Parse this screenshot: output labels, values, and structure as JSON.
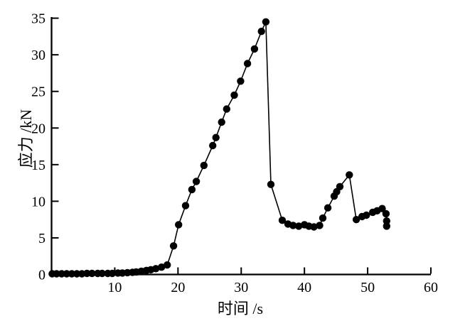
{
  "chart_data": {
    "type": "line",
    "title": "",
    "xlabel": "时间 /s",
    "ylabel": "应力 /kN",
    "xlim": [
      0,
      60
    ],
    "ylim": [
      0,
      35
    ],
    "xticks": [
      10,
      20,
      30,
      40,
      50,
      60
    ],
    "yticks": [
      0,
      5,
      10,
      15,
      20,
      25,
      30,
      35
    ],
    "grid": false,
    "legend": "none",
    "marker": "filled-circle",
    "colors": {
      "line": "#000000",
      "marker": "#000000",
      "axis": "#000000",
      "text": "#000000",
      "background": "#ffffff"
    },
    "series": [
      {
        "name": "stress",
        "points": [
          [
            0.1,
            0.1
          ],
          [
            0.8,
            0.1
          ],
          [
            1.6,
            0.1
          ],
          [
            2.4,
            0.1
          ],
          [
            3.2,
            0.1
          ],
          [
            4.0,
            0.1
          ],
          [
            4.8,
            0.1
          ],
          [
            5.6,
            0.15
          ],
          [
            6.4,
            0.15
          ],
          [
            7.3,
            0.15
          ],
          [
            8.0,
            0.15
          ],
          [
            8.9,
            0.15
          ],
          [
            9.6,
            0.15
          ],
          [
            10.5,
            0.2
          ],
          [
            11.2,
            0.2
          ],
          [
            12.0,
            0.25
          ],
          [
            12.8,
            0.3
          ],
          [
            13.4,
            0.35
          ],
          [
            14.2,
            0.45
          ],
          [
            15.0,
            0.55
          ],
          [
            15.7,
            0.65
          ],
          [
            16.5,
            0.8
          ],
          [
            17.4,
            1.0
          ],
          [
            18.3,
            1.3
          ],
          [
            19.3,
            3.9
          ],
          [
            20.1,
            6.8
          ],
          [
            21.2,
            9.4
          ],
          [
            22.2,
            11.6
          ],
          [
            22.9,
            12.7
          ],
          [
            24.1,
            14.9
          ],
          [
            25.5,
            17.6
          ],
          [
            26.0,
            18.7
          ],
          [
            26.9,
            20.8
          ],
          [
            27.7,
            22.6
          ],
          [
            28.9,
            24.5
          ],
          [
            29.9,
            26.4
          ],
          [
            31.0,
            28.8
          ],
          [
            32.1,
            30.8
          ],
          [
            33.2,
            33.2
          ],
          [
            33.9,
            34.5
          ],
          [
            34.7,
            12.3
          ],
          [
            36.5,
            7.4
          ],
          [
            37.4,
            6.9
          ],
          [
            38.2,
            6.7
          ],
          [
            39.1,
            6.6
          ],
          [
            40.0,
            6.8
          ],
          [
            40.7,
            6.6
          ],
          [
            41.5,
            6.5
          ],
          [
            42.4,
            6.7
          ],
          [
            42.9,
            7.7
          ],
          [
            43.7,
            9.1
          ],
          [
            44.7,
            10.7
          ],
          [
            45.1,
            11.3
          ],
          [
            45.6,
            12.0
          ],
          [
            47.1,
            13.6
          ],
          [
            48.2,
            7.5
          ],
          [
            49.1,
            7.9
          ],
          [
            49.8,
            8.1
          ],
          [
            50.8,
            8.5
          ],
          [
            51.5,
            8.7
          ],
          [
            52.3,
            9.0
          ],
          [
            52.9,
            8.3
          ],
          [
            53.0,
            7.3
          ],
          [
            53.0,
            6.6
          ]
        ]
      }
    ]
  }
}
